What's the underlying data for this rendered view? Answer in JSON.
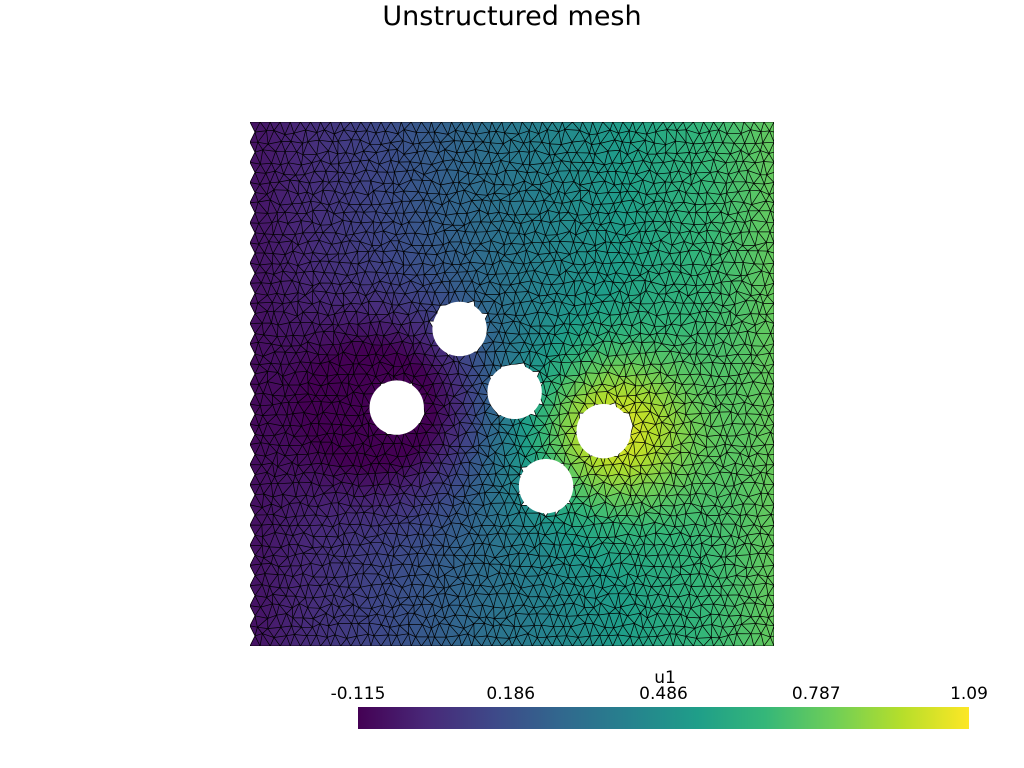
{
  "chart_data": {
    "type": "heatmap",
    "title": "Unstructured mesh",
    "scalar_name": "u1",
    "colormap": "viridis",
    "colormap_stops": [
      "#440154",
      "#482878",
      "#3e4989",
      "#31688e",
      "#26828e",
      "#1f9e89",
      "#35b779",
      "#6ece58",
      "#b5de2b",
      "#fde725"
    ],
    "clim": [
      -0.115,
      1.09
    ],
    "colorbar_ticks": [
      "-0.115",
      "0.186",
      "0.486",
      "0.787",
      "1.09"
    ],
    "domain": {
      "x": [
        0,
        1
      ],
      "y": [
        0,
        1
      ]
    },
    "mesh": {
      "element": "triangle",
      "edge_color": "#000000"
    },
    "holes": [
      {
        "cx": 0.4,
        "cy": 0.605,
        "r": 0.05
      },
      {
        "cx": 0.28,
        "cy": 0.455,
        "r": 0.05
      },
      {
        "cx": 0.505,
        "cy": 0.485,
        "r": 0.05
      },
      {
        "cx": 0.675,
        "cy": 0.41,
        "r": 0.05
      },
      {
        "cx": 0.565,
        "cy": 0.305,
        "r": 0.05
      }
    ],
    "field_trend": "u1 increases from left (about -0.115 near the left holes) to right (about 1.09 just right of the right-most hole), approximately 0.80 along the right edge"
  }
}
